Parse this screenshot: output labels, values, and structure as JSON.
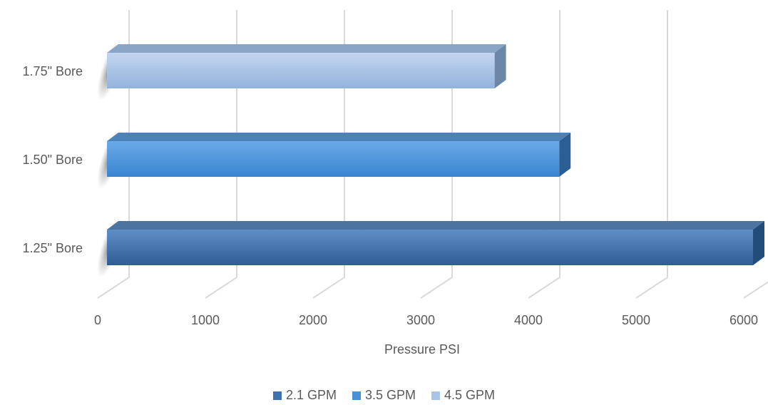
{
  "chart_data": {
    "type": "bar",
    "orientation": "horizontal",
    "style": "3d",
    "categories": [
      "1.25\" Bore",
      "1.50\" Bore",
      "1.75\" Bore"
    ],
    "series": [
      {
        "name": "2.1 GPM",
        "category": "1.25\" Bore",
        "value": 6000,
        "color": "#3F72AD"
      },
      {
        "name": "3.5 GPM",
        "category": "1.50\" Bore",
        "value": 4200,
        "color": "#4A90D9"
      },
      {
        "name": "4.5 GPM",
        "category": "1.75\" Bore",
        "value": 3600,
        "color": "#A8C4E8"
      }
    ],
    "xlabel": "Pressure PSI",
    "xlim": [
      0,
      6000
    ],
    "xticks": [
      "0",
      "1000",
      "2000",
      "3000",
      "4000",
      "5000",
      "6000"
    ],
    "grid": true,
    "legend_position": "bottom"
  }
}
